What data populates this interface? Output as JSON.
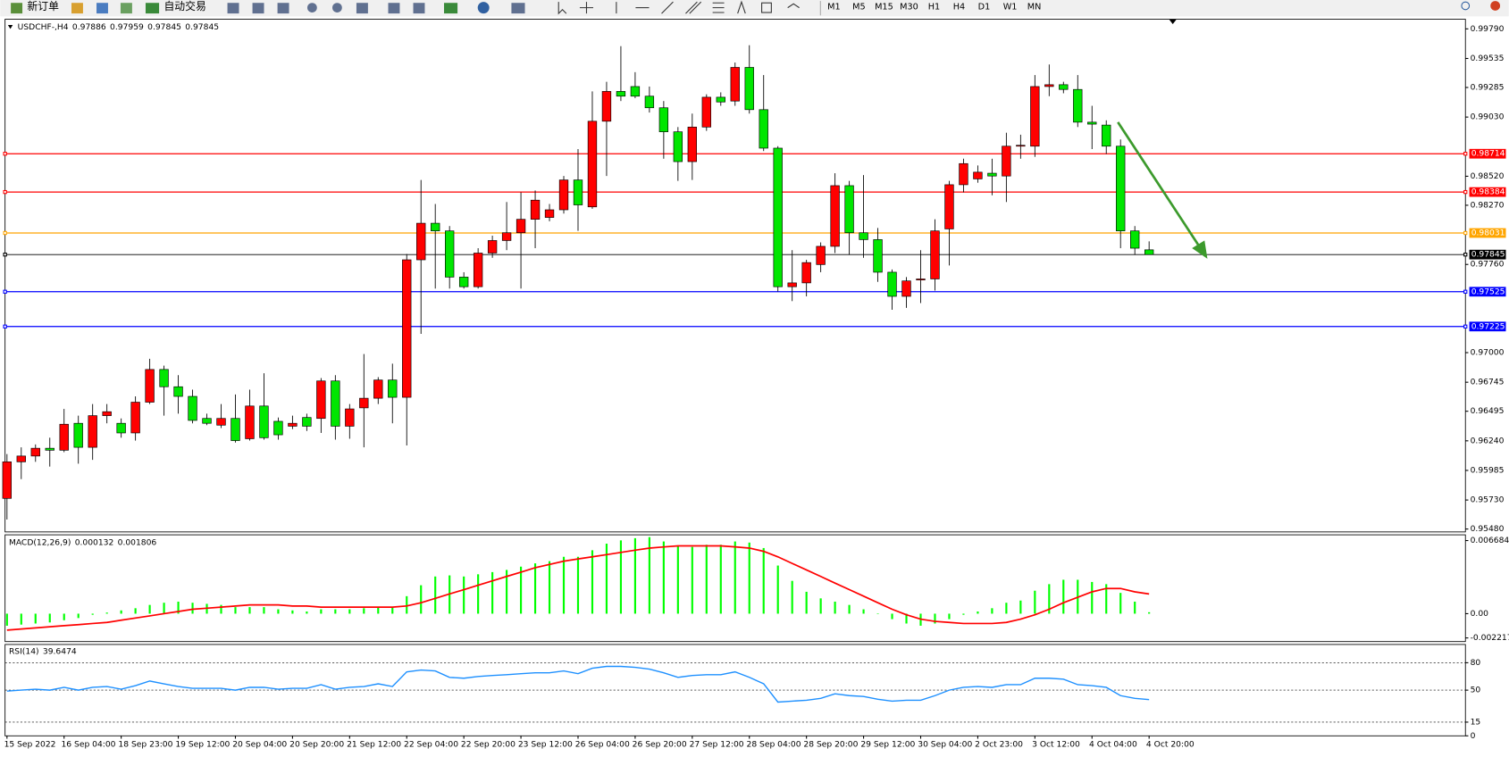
{
  "toolbar": {
    "new_order": "新订单",
    "auto_trading": "自动交易",
    "timeframes": [
      "M1",
      "M5",
      "M15",
      "M30",
      "H1",
      "H4",
      "D1",
      "W1",
      "MN"
    ]
  },
  "chart_data": [
    {
      "type": "candlestick",
      "symbol": "USDCHF-,H4",
      "categories": [
        "15 Sep 2022",
        null,
        null,
        null,
        "16 Sep 04:00",
        null,
        null,
        null,
        "18 Sep 23:00",
        null,
        null,
        null,
        "19 Sep 12:00",
        null,
        null,
        null,
        "20 Sep 04:00",
        null,
        null,
        null,
        "20 Sep 20:00",
        null,
        null,
        null,
        "21 Sep 12:00",
        null,
        null,
        null,
        "22 Sep 04:00",
        null,
        null,
        null,
        "22 Sep 20:00",
        null,
        null,
        null,
        "23 Sep 12:00",
        null,
        null,
        null,
        "26 Sep 04:00",
        null,
        null,
        null,
        "26 Sep 20:00",
        null,
        null,
        null,
        "27 Sep 12:00",
        null,
        null,
        null,
        "28 Sep 04:00",
        null,
        null,
        null,
        "28 Sep 20:00",
        null,
        null,
        null,
        "29 Sep 12:00",
        null,
        null,
        null,
        "30 Sep 04:00",
        null,
        null,
        null,
        "2 Oct 23:00",
        null,
        null,
        null,
        "3 Oct 12:00",
        null,
        null,
        null,
        "4 Oct 04:00",
        null,
        null,
        null,
        "4 Oct 20:00"
      ],
      "open": [
        0.95744,
        0.96059,
        0.96109,
        0.96176,
        0.96159,
        0.96391,
        0.96184,
        0.96457,
        0.96391,
        0.96308,
        0.96573,
        0.96855,
        0.96706,
        0.96623,
        0.96433,
        0.96375,
        0.96433,
        0.96258,
        0.9654,
        0.96408,
        0.96366,
        0.96441,
        0.96433,
        0.96756,
        0.96366,
        0.96524,
        0.96607,
        0.96764,
        0.96615,
        0.978,
        0.98115,
        0.98049,
        0.97651,
        0.97568,
        0.97858,
        0.97966,
        0.98033,
        0.98149,
        0.98165,
        0.98231,
        0.98488,
        0.98256,
        0.98994,
        0.99251,
        0.99293,
        0.9921,
        0.9911,
        0.98903,
        0.98646,
        0.98944,
        0.99201,
        0.99168,
        0.99458,
        0.99094,
        0.98762,
        0.97568,
        0.97601,
        0.97759,
        0.97916,
        0.98439,
        0.98033,
        0.97974,
        0.97693,
        0.97485,
        0.97626,
        0.97635,
        0.98066,
        0.98447,
        0.98497,
        0.98546,
        0.98522,
        0.98779,
        0.98779,
        0.99293,
        0.99309,
        0.99268,
        0.98986,
        0.98961,
        0.98779,
        0.98049,
        0.97886
      ],
      "high": [
        0.96126,
        0.96184,
        0.96209,
        0.96267,
        0.96515,
        0.96457,
        0.96557,
        0.96557,
        0.96433,
        0.96623,
        0.96947,
        0.96888,
        0.96806,
        0.96681,
        0.96474,
        0.96557,
        0.9664,
        0.96681,
        0.96822,
        0.96441,
        0.96457,
        0.96474,
        0.96781,
        0.96806,
        0.96557,
        0.96988,
        0.96789,
        0.96905,
        0.9785,
        0.98488,
        0.98281,
        0.98091,
        0.97693,
        0.979,
        0.98008,
        0.98298,
        0.98381,
        0.98397,
        0.98281,
        0.98522,
        0.98754,
        0.99251,
        0.99334,
        0.99641,
        0.99417,
        0.99293,
        0.99168,
        0.98944,
        0.9906,
        0.99226,
        0.99243,
        0.995,
        0.99649,
        0.99392,
        0.98779,
        0.97883,
        0.978,
        0.9795,
        0.98546,
        0.9848,
        0.9853,
        0.98074,
        0.97717,
        0.97651,
        0.97883,
        0.98149,
        0.9848,
        0.98671,
        0.98613,
        0.98671,
        0.98895,
        0.98878,
        0.99392,
        0.99483,
        0.99334,
        0.99392,
        0.99127,
        0.99002,
        0.98837,
        0.98091,
        0.97959
      ],
      "low": [
        0.95562,
        0.9591,
        0.96059,
        0.96018,
        0.96142,
        0.96043,
        0.96076,
        0.96391,
        0.96267,
        0.96242,
        0.96557,
        0.96457,
        0.96474,
        0.96391,
        0.96375,
        0.9635,
        0.96225,
        0.96242,
        0.9625,
        0.9625,
        0.96341,
        0.96325,
        0.96308,
        0.9625,
        0.96258,
        0.96184,
        0.96557,
        0.96391,
        0.962,
        0.97162,
        0.97552,
        0.97552,
        0.97552,
        0.97552,
        0.97817,
        0.97883,
        0.97552,
        0.979,
        0.98132,
        0.98198,
        0.98049,
        0.9824,
        0.98522,
        0.99168,
        0.99193,
        0.99069,
        0.98671,
        0.9848,
        0.98488,
        0.98911,
        0.99127,
        0.99127,
        0.9906,
        0.98737,
        0.97527,
        0.97444,
        0.97485,
        0.97693,
        0.97858,
        0.97842,
        0.97817,
        0.9761,
        0.97369,
        0.97386,
        0.97427,
        0.97535,
        0.97751,
        0.98381,
        0.98464,
        0.98356,
        0.98298,
        0.98671,
        0.98687,
        0.9921,
        0.99235,
        0.98944,
        0.98754,
        0.98712,
        0.979,
        0.97842,
        0.97845
      ],
      "close": [
        0.96059,
        0.96109,
        0.96176,
        0.96159,
        0.96383,
        0.96184,
        0.96457,
        0.96491,
        0.96308,
        0.96573,
        0.96855,
        0.96706,
        0.96623,
        0.96416,
        0.96391,
        0.96433,
        0.96242,
        0.9654,
        0.96267,
        0.96292,
        0.96391,
        0.96366,
        0.96756,
        0.96366,
        0.96515,
        0.96607,
        0.96764,
        0.96615,
        0.978,
        0.98115,
        0.98049,
        0.97651,
        0.97568,
        0.97858,
        0.97966,
        0.98033,
        0.98149,
        0.98314,
        0.98231,
        0.98488,
        0.98273,
        0.98994,
        0.99251,
        0.9921,
        0.9921,
        0.9911,
        0.98903,
        0.98646,
        0.98944,
        0.99201,
        0.9916,
        0.99458,
        0.99094,
        0.98762,
        0.97568,
        0.97601,
        0.97776,
        0.97916,
        0.98439,
        0.98033,
        0.97974,
        0.97693,
        0.97485,
        0.97618,
        0.97635,
        0.98049,
        0.98447,
        0.98629,
        0.98555,
        0.98522,
        0.98779,
        0.98787,
        0.99293,
        0.99309,
        0.99268,
        0.98986,
        0.98969,
        0.98779,
        0.98049,
        0.979,
        0.97845
      ],
      "up_color": "#ff0000",
      "down_color": "#00e600",
      "ylim": [
        0.95455,
        0.99873
      ],
      "yticks": [
        {
          "value": 0.9979,
          "label": "0.99790"
        },
        {
          "value": 0.99535,
          "label": "0.99535"
        },
        {
          "value": 0.99285,
          "label": "0.99285"
        },
        {
          "value": 0.9903,
          "label": "0.99030"
        },
        {
          "value": 0.9852,
          "label": "0.98520"
        },
        {
          "value": 0.9827,
          "label": "0.98270"
        },
        {
          "value": 0.9776,
          "label": "0.97760"
        },
        {
          "value": 0.97,
          "label": "0.97000"
        },
        {
          "value": 0.96745,
          "label": "0.96745"
        },
        {
          "value": 0.96495,
          "label": "0.96495"
        },
        {
          "value": 0.9624,
          "label": "0.96240"
        },
        {
          "value": 0.95985,
          "label": "0.95985"
        },
        {
          "value": 0.9573,
          "label": "0.95730"
        },
        {
          "value": 0.9548,
          "label": "0.95480"
        }
      ],
      "levels": [
        {
          "value": 0.98714,
          "color": "#ff0000"
        },
        {
          "value": 0.98384,
          "color": "#ff0000"
        },
        {
          "value": 0.98031,
          "color": "#ffa500"
        },
        {
          "value": 0.97845,
          "color": "#000000"
        },
        {
          "value": 0.97525,
          "color": "#0000ff"
        },
        {
          "value": 0.97225,
          "color": "#0000ff"
        }
      ]
    },
    {
      "type": "macd",
      "title": "MACD(12,26,9)",
      "values": [
        -0.0011,
        -0.001,
        -0.0009,
        -0.0008,
        -0.0006,
        -0.0004,
        -0.0001,
        0.0001,
        0.0003,
        0.0005,
        0.0008,
        0.001,
        0.0011,
        0.001,
        0.0009,
        0.0008,
        0.0006,
        0.0006,
        0.0006,
        0.0004,
        0.0003,
        0.0002,
        0.0004,
        0.0004,
        0.0004,
        0.0005,
        0.0006,
        0.0006,
        0.0016,
        0.0026,
        0.0034,
        0.0035,
        0.0034,
        0.0036,
        0.0038,
        0.004,
        0.0043,
        0.0046,
        0.0048,
        0.0052,
        0.0052,
        0.0058,
        0.0064,
        0.0067,
        0.0069,
        0.007,
        0.0066,
        0.0062,
        0.0061,
        0.0063,
        0.0063,
        0.0066,
        0.0065,
        0.006,
        0.0044,
        0.003,
        0.002,
        0.0014,
        0.0011,
        0.0008,
        0.0004,
        0,
        -0.0005,
        -0.0009,
        -0.0011,
        -0.0009,
        -0.0005,
        -0.0001,
        0.0002,
        0.0005,
        0.001,
        0.0012,
        0.0021,
        0.0027,
        0.0031,
        0.0031,
        0.0029,
        0.0027,
        0.0019,
        0.0011,
        0.000132
      ],
      "color": "#00ff00",
      "signal": [
        -0.0015,
        -0.0014,
        -0.0013,
        -0.0012,
        -0.0011,
        -0.001,
        -0.0009,
        -0.0008,
        -0.0006,
        -0.0004,
        -0.0002,
        0,
        0.0002,
        0.0004,
        0.0005,
        0.0006,
        0.0007,
        0.0008,
        0.0008,
        0.0008,
        0.0007,
        0.0007,
        0.0006,
        0.0006,
        0.0006,
        0.0006,
        0.0006,
        0.0006,
        0.0007,
        0.001,
        0.0014,
        0.0018,
        0.0022,
        0.0026,
        0.003,
        0.0034,
        0.0038,
        0.0042,
        0.0045,
        0.0048,
        0.005,
        0.0052,
        0.0054,
        0.0056,
        0.0058,
        0.006,
        0.0061,
        0.0062,
        0.0062,
        0.0062,
        0.0062,
        0.0061,
        0.006,
        0.0057,
        0.0052,
        0.0046,
        0.004,
        0.0034,
        0.0028,
        0.0022,
        0.0016,
        0.001,
        0.0004,
        -0.0001,
        -0.0005,
        -0.0007,
        -0.0008,
        -0.0009,
        -0.0009,
        -0.0009,
        -0.0008,
        -0.0005,
        -0.0001,
        0.0004,
        0.001,
        0.0015,
        0.002,
        0.0023,
        0.0023,
        0.002,
        0.001806
      ],
      "signal_color": "#ff0000",
      "ylim": [
        -0.00255,
        0.00721
      ],
      "yticks": [
        0.006684,
        {
          "value": 0,
          "label": "0.00"
        },
        -0.002217
      ]
    },
    {
      "type": "line",
      "title": "RSI(14)",
      "values": [
        49,
        50,
        51,
        50,
        53,
        50,
        53,
        54,
        51,
        55,
        60,
        57,
        54,
        52,
        52,
        52,
        50,
        53,
        53,
        51,
        52,
        52,
        56,
        51,
        53,
        54,
        57,
        54,
        70,
        72,
        71,
        64,
        63,
        65,
        66,
        67,
        68,
        69,
        69,
        71,
        68,
        74,
        76,
        76,
        75,
        73,
        69,
        64,
        66,
        67,
        67,
        70,
        64,
        57,
        37,
        38,
        39,
        41,
        46,
        44,
        43,
        40,
        38,
        39,
        39,
        44,
        50,
        53,
        54,
        53,
        56,
        56,
        63,
        63,
        62,
        56,
        55,
        53,
        44,
        41,
        39.6474
      ],
      "color": "#1e90ff",
      "ylim": [
        0,
        100
      ],
      "yticks": [
        80,
        50,
        15,
        0
      ],
      "grid": "dashed"
    }
  ]
}
